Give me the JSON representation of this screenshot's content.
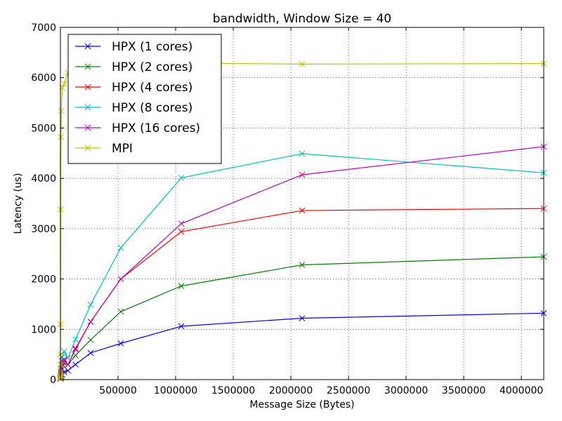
{
  "chart_data": {
    "type": "line",
    "title": "bandwidth, Window Size = 40",
    "xlabel": "Message Size (Bytes)",
    "ylabel": "Latency (us)",
    "xlim": [
      0,
      4194304
    ],
    "ylim": [
      0,
      7000
    ],
    "xticks": [
      500000,
      1000000,
      1500000,
      2000000,
      2500000,
      3000000,
      3500000,
      4000000
    ],
    "xtick_labels": [
      "500000",
      "1000000",
      "1500000",
      "2000000",
      "2500000",
      "3000000",
      "3500000",
      "4000000"
    ],
    "yticks": [
      0,
      1000,
      2000,
      3000,
      4000,
      5000,
      6000,
      7000
    ],
    "ytick_labels": [
      "0",
      "1000",
      "2000",
      "3000",
      "4000",
      "5000",
      "6000",
      "7000"
    ],
    "grid": true,
    "legend_position": "top-left",
    "x": [
      1,
      2,
      4,
      8,
      16,
      32,
      64,
      128,
      256,
      512,
      1024,
      2048,
      4096,
      8192,
      16384,
      32768,
      65536,
      131072,
      262144,
      524288,
      1048576,
      2097152,
      4194304
    ],
    "series": [
      {
        "name": "HPX (1 cores)",
        "color": "#0000ff",
        "values": [
          20,
          20,
          20,
          20,
          20,
          20,
          20,
          20,
          20,
          20,
          20,
          20,
          30,
          60,
          100,
          150,
          180,
          300,
          530,
          720,
          1060,
          1220,
          1320
        ]
      },
      {
        "name": "HPX (2 cores)",
        "color": "#008000",
        "values": [
          25,
          25,
          25,
          25,
          25,
          25,
          25,
          25,
          25,
          25,
          30,
          40,
          60,
          110,
          200,
          320,
          300,
          480,
          790,
          1350,
          1860,
          2280,
          2440
        ]
      },
      {
        "name": "HPX (4 cores)",
        "color": "#ff0000",
        "values": [
          30,
          30,
          30,
          30,
          30,
          30,
          30,
          30,
          30,
          30,
          40,
          60,
          100,
          180,
          300,
          380,
          300,
          620,
          1150,
          2000,
          2940,
          3360,
          3400
        ]
      },
      {
        "name": "HPX (8 cores)",
        "color": "#00bfbf",
        "values": [
          30,
          30,
          30,
          30,
          30,
          30,
          30,
          30,
          30,
          30,
          50,
          80,
          150,
          280,
          450,
          560,
          430,
          800,
          1490,
          2620,
          4010,
          4490,
          4110
        ]
      },
      {
        "name": "HPX (16 cores)",
        "color": "#bf00bf",
        "values": [
          30,
          30,
          30,
          30,
          30,
          30,
          30,
          30,
          30,
          30,
          50,
          80,
          130,
          230,
          370,
          400,
          300,
          600,
          1150,
          2000,
          3100,
          4070,
          4630
        ]
      },
      {
        "name": "MPI",
        "color": "#bfbf00",
        "values": [
          30,
          30,
          30,
          30,
          40,
          50,
          80,
          150,
          300,
          500,
          1100,
          3380,
          4820,
          5340,
          5800,
          5880,
          6100,
          6230,
          6280,
          6290,
          6290,
          6270,
          6280
        ]
      }
    ]
  }
}
